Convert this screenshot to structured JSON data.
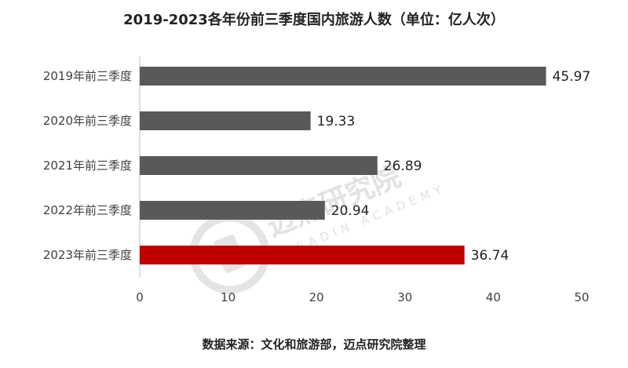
{
  "chart_data": {
    "type": "bar",
    "orientation": "horizontal",
    "title": "2019-2023各年份前三季度国内旅游人数（单位：亿人次）",
    "categories": [
      "2019年前三季度",
      "2020年前三季度",
      "2021年前三季度",
      "2022年前三季度",
      "2023年前三季度"
    ],
    "values": [
      45.97,
      19.33,
      26.89,
      20.94,
      36.74
    ],
    "value_labels": [
      "45.97",
      "19.33",
      "26.89",
      "20.94",
      "36.74"
    ],
    "xlim": [
      0,
      50
    ],
    "xticks": [
      0,
      10,
      20,
      30,
      40,
      50
    ],
    "grid": false,
    "colors": {
      "default_bar": "#595959",
      "highlight_bar": "#c00000",
      "axis": "#bfbfbf"
    },
    "highlight_index": 4
  },
  "source_note": "数据来源：文化和旅游部，迈点研究院整理",
  "watermark": {
    "text": "迈点研究院",
    "subtext": "MEADIN ACADEMY",
    "icon": "meadin-logo-icon"
  }
}
